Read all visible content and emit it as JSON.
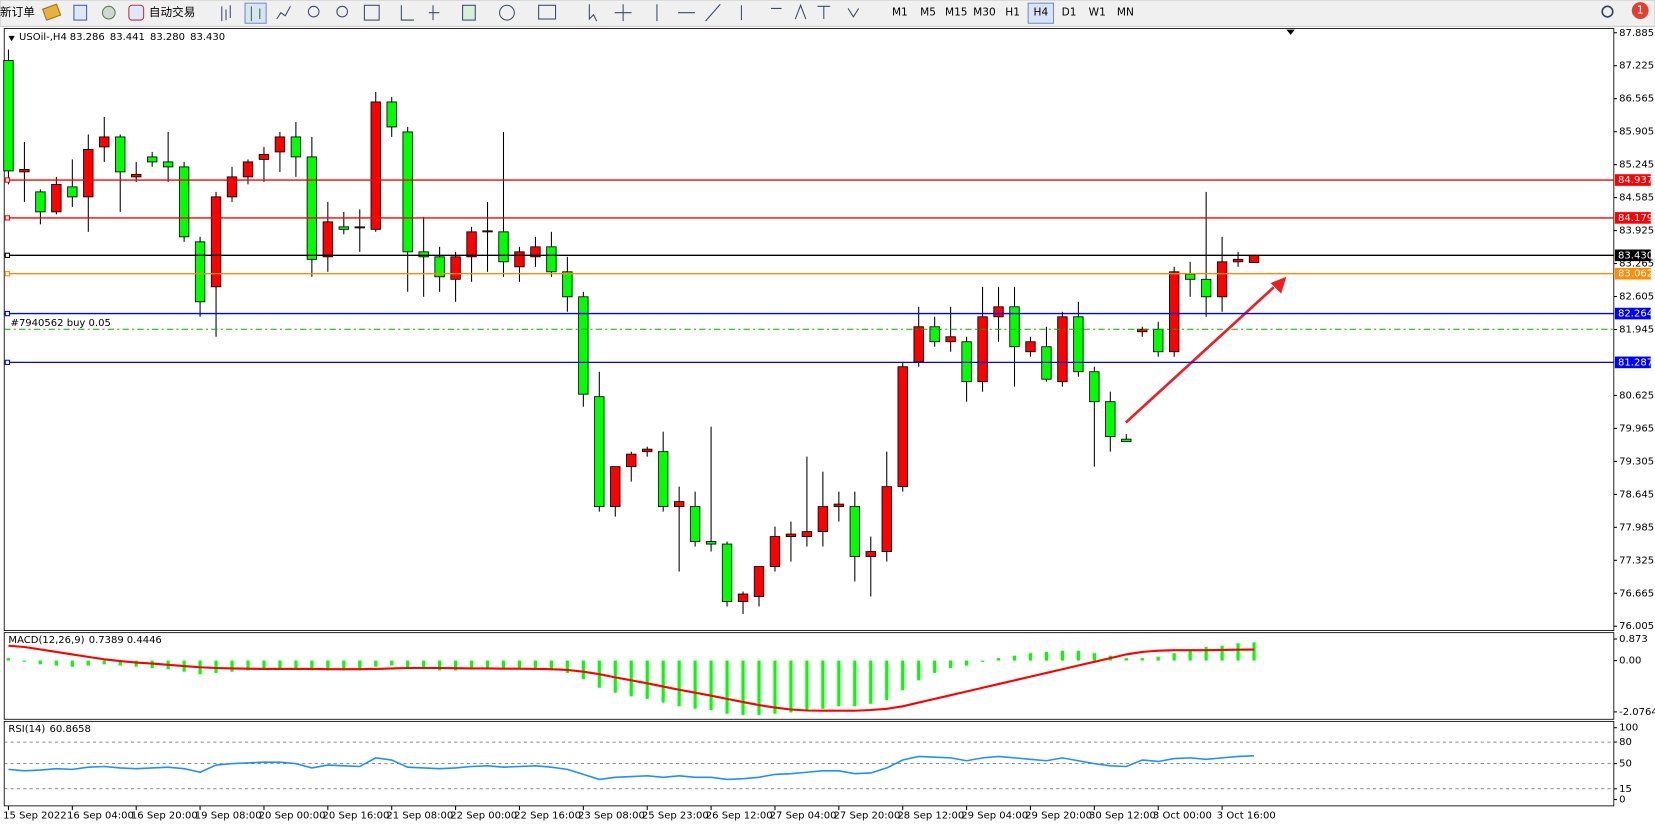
{
  "toolbar": {
    "new_order": "新订单",
    "auto_trading": "自动交易",
    "timeframes": [
      "M1",
      "M5",
      "M15",
      "M30",
      "H1",
      "H4",
      "D1",
      "W1",
      "MN"
    ],
    "active_timeframe": "H4",
    "notifications": 1
  },
  "chart_data": [
    {
      "type": "candlestick",
      "title": "USOil-,H4",
      "legend_values": [
        "83.286",
        "83.441",
        "83.280",
        "83.430"
      ],
      "up_color": "#ff0000",
      "down_color": "#00ff00",
      "categories": [
        "15 Sep 2022",
        null,
        null,
        null,
        "16 Sep 04:00",
        null,
        null,
        null,
        "16 Sep 20:00",
        null,
        null,
        null,
        "19 Sep 08:00",
        null,
        null,
        null,
        "20 Sep 00:00",
        null,
        null,
        null,
        "20 Sep 16:00",
        null,
        null,
        null,
        "21 Sep 08:00",
        null,
        null,
        null,
        "22 Sep 00:00",
        null,
        null,
        null,
        "22 Sep 16:00",
        null,
        null,
        null,
        "23 Sep 08:00",
        null,
        null,
        null,
        "25 Sep 23:00",
        null,
        null,
        null,
        "26 Sep 12:00",
        null,
        null,
        null,
        "27 Sep 04:00",
        null,
        null,
        null,
        "27 Sep 20:00",
        null,
        null,
        null,
        "28 Sep 12:00",
        null,
        null,
        null,
        "29 Sep 04:00",
        null,
        null,
        null,
        "29 Sep 20:00",
        null,
        null,
        null,
        "30 Sep 12:00",
        null,
        null,
        null,
        "3 Oct 00:00",
        null,
        null,
        null,
        "3 Oct 16:00",
        null,
        null
      ],
      "open": [
        87.33,
        85.1,
        84.7,
        84.3,
        84.8,
        84.6,
        85.6,
        85.8,
        85.0,
        85.4,
        85.3,
        85.2,
        83.7,
        82.8,
        84.6,
        85.0,
        85.35,
        85.5,
        85.8,
        85.4,
        83.4,
        84.0,
        84.0,
        83.95,
        86.5,
        85.9,
        83.5,
        83.4,
        82.95,
        83.4,
        83.9,
        83.9,
        83.2,
        83.4,
        83.6,
        83.1,
        82.6,
        80.6,
        78.4,
        79.2,
        79.5,
        79.5,
        78.4,
        78.4,
        77.7,
        77.65,
        76.5,
        76.6,
        77.2,
        77.8,
        77.8,
        77.9,
        78.4,
        78.4,
        77.4,
        77.5,
        78.8,
        81.3,
        82.0,
        81.7,
        81.7,
        80.9,
        82.2,
        82.4,
        81.5,
        81.6,
        80.9,
        82.2,
        81.1,
        80.5,
        79.75,
        81.9,
        81.95,
        81.5,
        83.05,
        82.95,
        82.6,
        83.3,
        83.286
      ],
      "high": [
        87.55,
        85.7,
        84.75,
        85.0,
        85.35,
        85.85,
        86.2,
        85.85,
        85.3,
        85.5,
        85.9,
        85.3,
        83.8,
        84.7,
        85.2,
        85.35,
        85.6,
        85.9,
        86.1,
        85.8,
        84.5,
        84.3,
        84.35,
        86.7,
        86.6,
        86.0,
        84.2,
        83.6,
        83.5,
        84.0,
        84.5,
        85.9,
        83.6,
        83.8,
        83.9,
        83.4,
        82.7,
        81.1,
        79.2,
        79.5,
        79.6,
        79.9,
        78.8,
        78.7,
        80.0,
        77.7,
        76.7,
        77.2,
        78.0,
        78.1,
        79.4,
        79.1,
        78.7,
        78.7,
        77.8,
        79.5,
        81.3,
        82.4,
        82.2,
        82.4,
        81.8,
        82.8,
        82.8,
        82.8,
        81.8,
        82.0,
        82.3,
        82.5,
        81.2,
        80.7,
        79.85,
        82.0,
        82.1,
        83.2,
        83.3,
        84.7,
        83.8,
        83.5,
        83.441
      ],
      "low": [
        84.85,
        84.5,
        84.05,
        84.25,
        84.4,
        83.9,
        85.3,
        84.3,
        84.9,
        85.2,
        84.9,
        83.7,
        82.2,
        81.8,
        84.5,
        84.85,
        84.9,
        85.1,
        85.0,
        83.0,
        83.1,
        83.85,
        83.5,
        83.9,
        85.8,
        82.7,
        82.6,
        82.7,
        82.5,
        82.9,
        83.1,
        83.0,
        82.9,
        83.2,
        83.0,
        82.3,
        80.4,
        78.3,
        78.2,
        78.9,
        79.4,
        78.3,
        77.1,
        77.6,
        77.5,
        76.4,
        76.25,
        76.4,
        77.1,
        77.3,
        77.6,
        77.6,
        78.1,
        76.9,
        76.6,
        77.3,
        78.7,
        81.2,
        81.6,
        81.5,
        80.5,
        80.7,
        81.7,
        80.8,
        81.4,
        80.9,
        80.8,
        81.0,
        79.2,
        79.5,
        79.7,
        81.8,
        81.4,
        81.4,
        82.6,
        82.2,
        82.3,
        83.2,
        83.28
      ],
      "close": [
        85.12,
        85.15,
        84.3,
        84.85,
        84.6,
        85.55,
        85.8,
        85.1,
        85.05,
        85.3,
        85.2,
        83.8,
        82.5,
        84.6,
        85.0,
        85.3,
        85.45,
        85.8,
        85.4,
        83.35,
        84.1,
        83.95,
        84.0,
        86.5,
        86.0,
        83.5,
        83.4,
        83.0,
        83.4,
        83.9,
        83.92,
        83.3,
        83.5,
        83.6,
        83.1,
        82.6,
        80.65,
        78.4,
        79.2,
        79.45,
        79.55,
        78.4,
        78.5,
        77.7,
        77.65,
        76.5,
        76.65,
        77.2,
        77.8,
        77.85,
        77.9,
        78.4,
        78.45,
        77.4,
        77.5,
        78.8,
        81.2,
        82.0,
        81.7,
        81.8,
        80.9,
        82.2,
        82.4,
        81.6,
        81.7,
        80.95,
        82.2,
        81.1,
        80.5,
        79.8,
        79.7,
        81.95,
        81.5,
        83.1,
        82.95,
        82.6,
        83.3,
        83.35,
        83.43
      ],
      "ylim": [
        75.94,
        87.97
      ],
      "yticks": [
        87.885,
        87.225,
        86.565,
        85.905,
        85.245,
        84.585,
        83.925,
        83.265,
        82.605,
        81.945,
        80.625,
        79.965,
        79.305,
        78.645,
        77.985,
        77.325,
        76.665,
        76.005
      ],
      "levels": [
        {
          "value": 84.937,
          "label": "84.937",
          "color": "#ff0000"
        },
        {
          "value": 84.179,
          "label": "84.179",
          "color": "#ff0000"
        },
        {
          "value": 83.43,
          "label": "83.430",
          "color": "#000000"
        },
        {
          "value": 83.062,
          "label": "83.062",
          "color": "#ff8c00"
        },
        {
          "value": 82.264,
          "label": "82.264",
          "color": "#0000ff"
        },
        {
          "value": 81.287,
          "label": "81.287",
          "color": "#0000ff"
        }
      ],
      "order_line": {
        "label": "#7940562 buy 0.05",
        "value": 81.95,
        "color": "#00b000"
      }
    },
    {
      "type": "macd",
      "title": "MACD(12,26,9)",
      "series": [
        {
          "name": "MACD",
          "color": "#00ff00",
          "values": [
            0.1,
            -0.05,
            -0.15,
            -0.2,
            -0.25,
            -0.2,
            -0.15,
            -0.2,
            -0.25,
            -0.3,
            -0.35,
            -0.45,
            -0.55,
            -0.5,
            -0.45,
            -0.4,
            -0.35,
            -0.3,
            -0.3,
            -0.4,
            -0.4,
            -0.4,
            -0.4,
            -0.25,
            -0.2,
            -0.3,
            -0.35,
            -0.4,
            -0.4,
            -0.35,
            -0.3,
            -0.35,
            -0.35,
            -0.35,
            -0.4,
            -0.5,
            -0.75,
            -1.1,
            -1.3,
            -1.45,
            -1.55,
            -1.7,
            -1.85,
            -1.95,
            -2.0,
            -2.15,
            -2.2,
            -2.2,
            -2.15,
            -2.1,
            -2.05,
            -1.95,
            -1.85,
            -1.85,
            -1.75,
            -1.6,
            -1.2,
            -0.8,
            -0.5,
            -0.3,
            -0.2,
            -0.05,
            0.1,
            0.2,
            0.3,
            0.35,
            0.4,
            0.4,
            0.3,
            0.2,
            0.1,
            0.1,
            0.15,
            0.3,
            0.45,
            0.55,
            0.6,
            0.7,
            0.7389
          ]
        },
        {
          "name": "Signal",
          "color": "#ff0000",
          "values": [
            0.6,
            0.55,
            0.45,
            0.35,
            0.25,
            0.15,
            0.05,
            -0.02,
            -0.08,
            -0.12,
            -0.17,
            -0.22,
            -0.27,
            -0.3,
            -0.32,
            -0.33,
            -0.34,
            -0.34,
            -0.34,
            -0.34,
            -0.35,
            -0.35,
            -0.35,
            -0.34,
            -0.32,
            -0.3,
            -0.3,
            -0.3,
            -0.31,
            -0.32,
            -0.32,
            -0.33,
            -0.33,
            -0.34,
            -0.35,
            -0.38,
            -0.45,
            -0.55,
            -0.68,
            -0.8,
            -0.92,
            -1.05,
            -1.18,
            -1.3,
            -1.42,
            -1.55,
            -1.68,
            -1.8,
            -1.9,
            -1.98,
            -2.02,
            -2.03,
            -2.03,
            -2.03,
            -2.0,
            -1.95,
            -1.85,
            -1.7,
            -1.55,
            -1.4,
            -1.25,
            -1.1,
            -0.95,
            -0.8,
            -0.65,
            -0.5,
            -0.35,
            -0.2,
            -0.05,
            0.1,
            0.25,
            0.35,
            0.4,
            0.42,
            0.42,
            0.42,
            0.43,
            0.44,
            0.4446
          ]
        }
      ],
      "ylim": [
        -2.375,
        1.13
      ],
      "yticks": [
        0.873,
        {
          "value": 0,
          "label": "0.00"
        },
        -2.0764
      ]
    },
    {
      "type": "rsi",
      "title": "RSI(14)",
      "color": "#1e90ff",
      "values": [
        42,
        40,
        41,
        43,
        42,
        45,
        46,
        44,
        43,
        44,
        45,
        43,
        38,
        48,
        50,
        51,
        52,
        52,
        50,
        44,
        48,
        47,
        46,
        58,
        55,
        45,
        44,
        43,
        44,
        46,
        47,
        45,
        46,
        47,
        45,
        42,
        35,
        28,
        31,
        32,
        33,
        31,
        33,
        31,
        31,
        28,
        29,
        31,
        35,
        36,
        38,
        40,
        40,
        36,
        37,
        44,
        55,
        60,
        59,
        58,
        54,
        58,
        60,
        58,
        56,
        54,
        58,
        54,
        50,
        47,
        46,
        55,
        53,
        57,
        58,
        56,
        58,
        60,
        60.8658
      ],
      "ylim": [
        -8.8,
        108.8
      ],
      "yticks": [
        100,
        80,
        50,
        15,
        0
      ],
      "levels": [
        80,
        50,
        15
      ]
    }
  ]
}
